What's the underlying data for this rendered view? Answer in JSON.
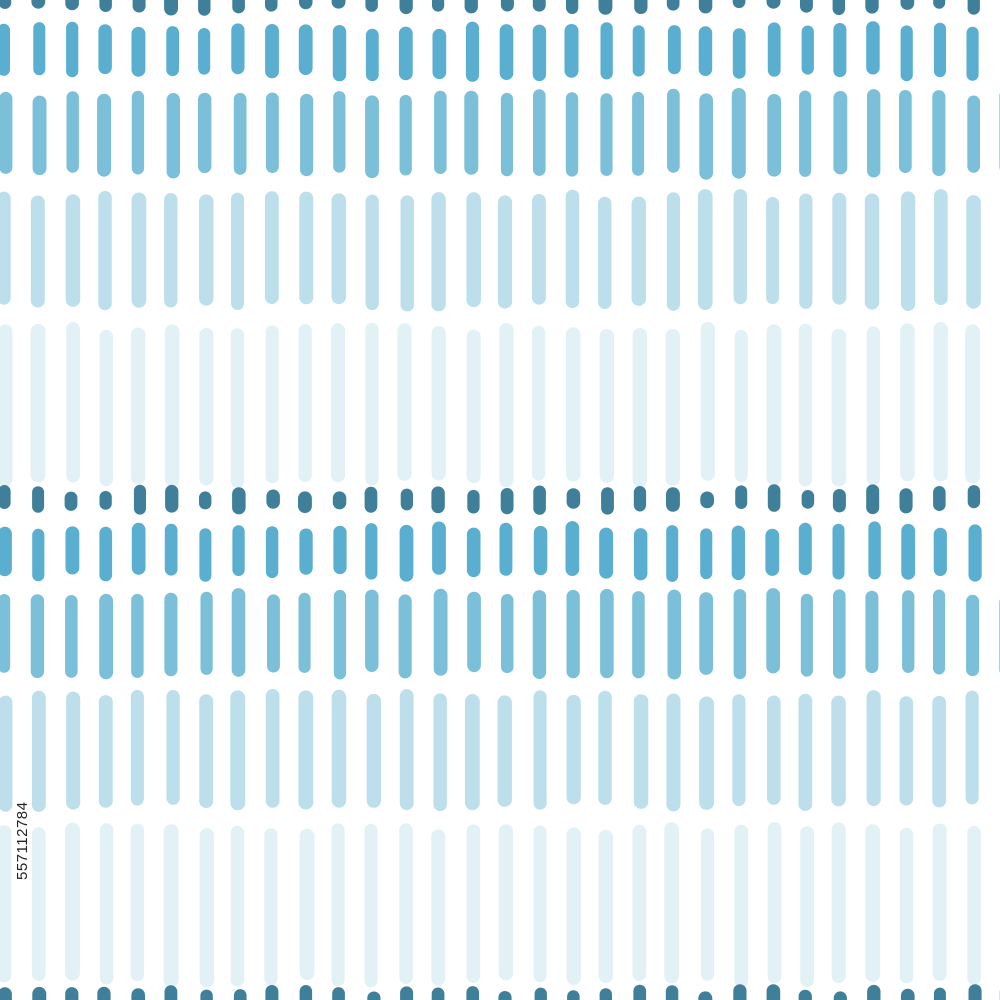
{
  "watermark_id": "557112784"
}
